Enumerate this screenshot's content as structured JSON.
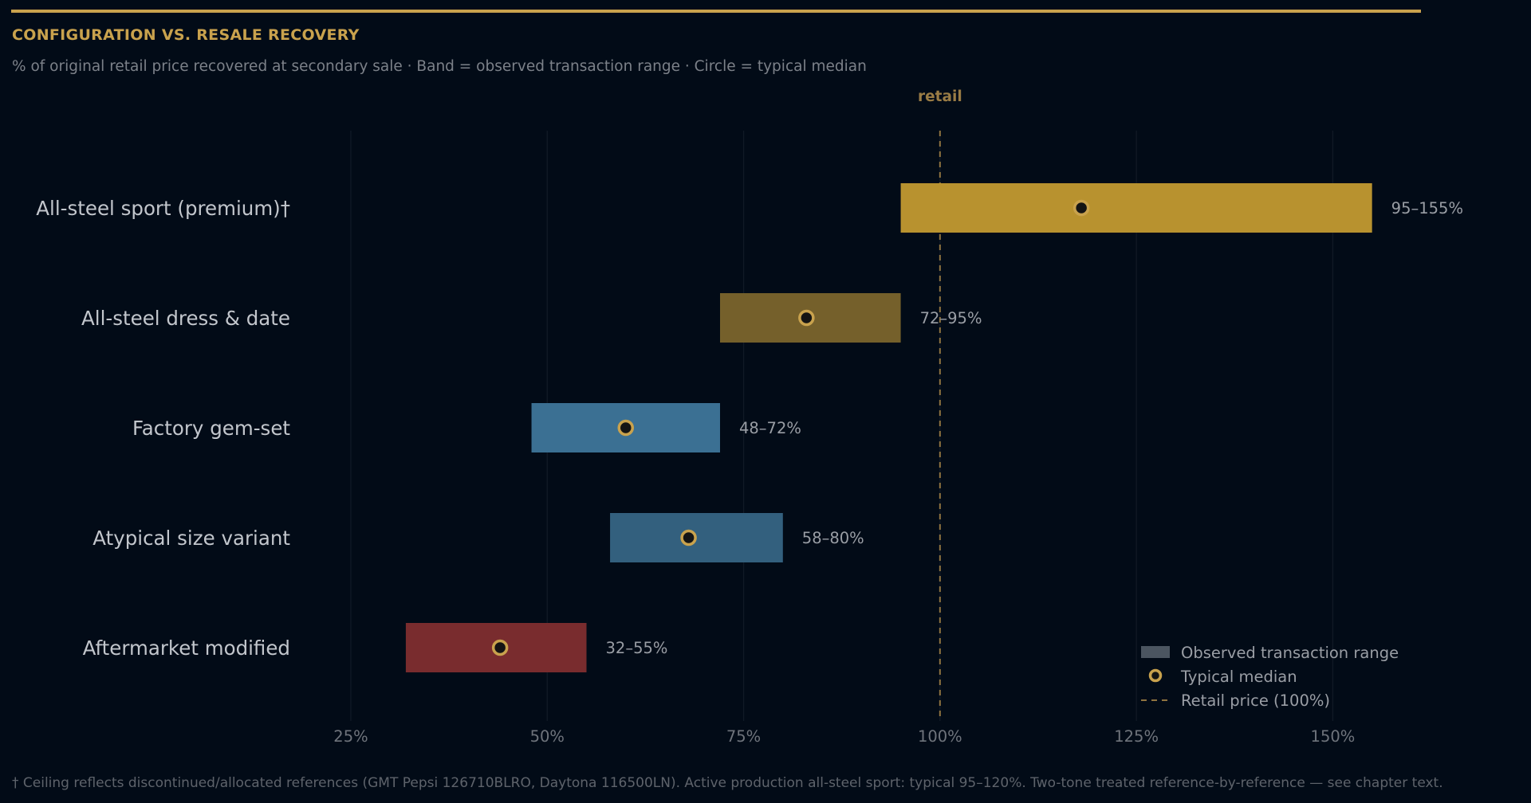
{
  "header": {
    "title": "CONFIGURATION VS. RESALE RECOVERY",
    "subtitle": "% of original retail price recovered at secondary sale  ·  Band = observed transaction range  ·  Circle = typical median"
  },
  "footnote": "† Ceiling reflects discontinued/allocated references (GMT Pepsi 126710BLRO, Daytona 116500LN). Active production all-steel sport: typical 95–120%.  Two-tone treated reference-by-reference — see chapter text.",
  "colors": {
    "background": "#020b17",
    "accent": "#c9a24d",
    "label_text": "#c2c6cc",
    "value_text": "#9a9ea5",
    "tick_text": "#6f747c",
    "grid": "#111a26"
  },
  "chart_data": {
    "type": "range-bar",
    "title": "CONFIGURATION VS. RESALE RECOVERY",
    "xlabel": "",
    "ylabel": "",
    "xlim": [
      0.18,
      1.73
    ],
    "x_ticks": [
      0.25,
      0.5,
      0.75,
      1.0,
      1.25,
      1.5
    ],
    "x_tick_labels": [
      "25%",
      "50%",
      "75%",
      "100%",
      "125%",
      "150%"
    ],
    "grid": "vertical",
    "reference_line": {
      "value": 1.0,
      "label": "retail",
      "style": "dashed"
    },
    "categories": [
      "All-steel sport (premium)†",
      "All-steel dress & date",
      "Factory gem-set",
      "Atypical size variant",
      "Aftermarket modified"
    ],
    "series": [
      {
        "name": "Observed transaction range",
        "low": [
          0.95,
          0.72,
          0.48,
          0.58,
          0.32
        ],
        "high": [
          1.55,
          0.95,
          0.72,
          0.8,
          0.55
        ],
        "labels": [
          "95–155%",
          "72–95%",
          "48–72%",
          "58–80%",
          "32–55%"
        ],
        "colors": [
          "#b8922f",
          "#75602b",
          "#3b7093",
          "#33607e",
          "#792c2e"
        ]
      },
      {
        "name": "Typical median",
        "values": [
          1.18,
          0.83,
          0.6,
          0.68,
          0.44
        ]
      }
    ],
    "legend": {
      "position": "bottom-right",
      "entries": [
        "Observed transaction range",
        "Typical median",
        "Retail price (100%)"
      ]
    }
  }
}
